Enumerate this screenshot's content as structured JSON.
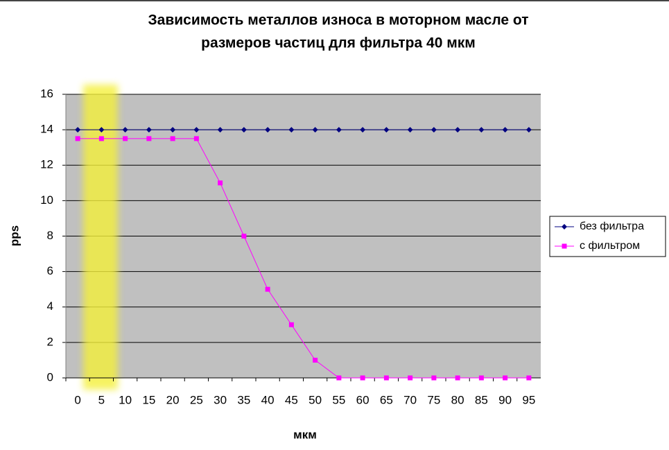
{
  "chart_data": {
    "type": "line",
    "title": [
      "Зависимость металлов износа в моторном масле от",
      "размеров частиц для фильтра 40 мкм"
    ],
    "x_label": "мкм",
    "y_label": "pps",
    "categories": [
      0,
      5,
      10,
      15,
      20,
      25,
      30,
      35,
      40,
      45,
      50,
      55,
      60,
      65,
      70,
      75,
      80,
      85,
      90,
      95
    ],
    "series": [
      {
        "name": "без фильтра",
        "color": "#000080",
        "marker": "diamond",
        "values": [
          14,
          14,
          14,
          14,
          14,
          14,
          14,
          14,
          14,
          14,
          14,
          14,
          14,
          14,
          14,
          14,
          14,
          14,
          14,
          14
        ]
      },
      {
        "name": "с фильтром",
        "color": "#ff00ff",
        "marker": "square",
        "values": [
          13.5,
          13.5,
          13.5,
          13.5,
          13.5,
          13.5,
          11,
          8,
          5,
          3,
          1,
          0,
          0,
          0,
          0,
          0,
          0,
          0,
          0,
          0
        ]
      }
    ],
    "ylim": [
      0,
      16
    ],
    "yticks": [
      0,
      2,
      4,
      6,
      8,
      10,
      12,
      14,
      16
    ],
    "grid": true,
    "legend": "right"
  }
}
